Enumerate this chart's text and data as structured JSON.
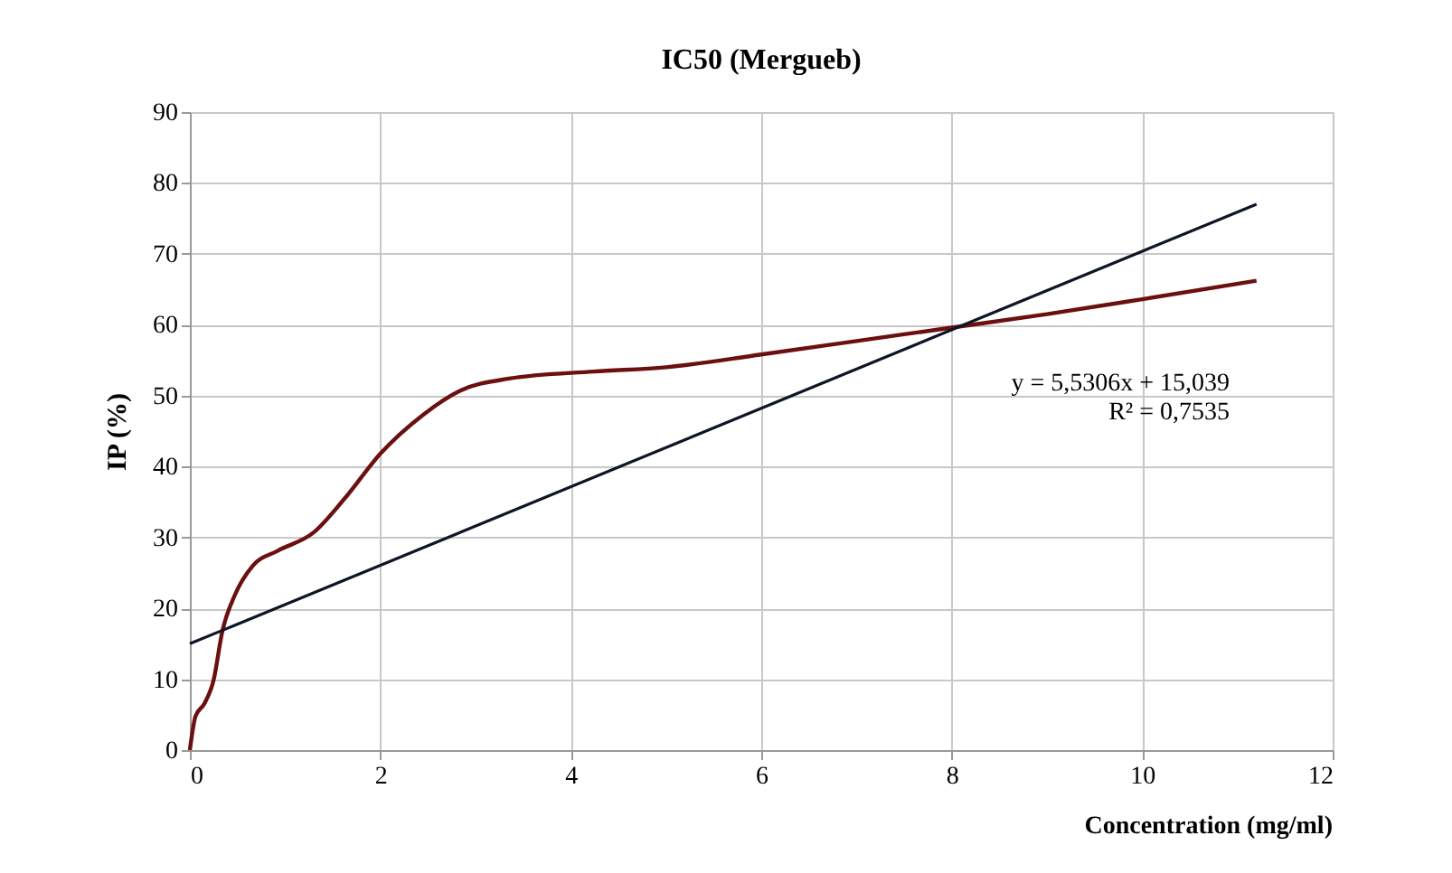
{
  "chart_data": {
    "type": "line",
    "title": "IC50 (Mergueb)",
    "xlabel": "Concentration (mg/ml)",
    "ylabel": "IP (%)",
    "xlim": [
      0,
      12
    ],
    "xticks": [
      0,
      2,
      4,
      6,
      8,
      10,
      12
    ],
    "ylim": [
      0,
      90
    ],
    "yticks": [
      0,
      10,
      20,
      30,
      40,
      50,
      60,
      70,
      80,
      90
    ],
    "grid": true,
    "legend": false,
    "marker": "none",
    "line_style": "solid",
    "series": [
      {
        "type": "line",
        "color": "#6b0f0f",
        "x": [
          0,
          0.06,
          0.15,
          0.25,
          0.34,
          0.47,
          0.66,
          0.92,
          1.3,
          1.62,
          2,
          2.45,
          2.84,
          3.35,
          4.24,
          5,
          6,
          7,
          8,
          9,
          10,
          11.2
        ],
        "values": [
          0,
          4.8,
          6.5,
          9.9,
          16.7,
          21.8,
          26,
          28.1,
          30.7,
          35.4,
          41.8,
          47.3,
          50.7,
          52.4,
          53.4,
          54,
          55.8,
          57.7,
          59.6,
          61.5,
          63.6,
          66.2
        ]
      },
      {
        "type": "line",
        "color": "#0d1526",
        "x": [
          0,
          11.2
        ],
        "values": [
          15.0,
          77.0
        ]
      }
    ],
    "annotations": [
      "y = 5,5306x + 15,039",
      "R² = 0,7535"
    ]
  }
}
